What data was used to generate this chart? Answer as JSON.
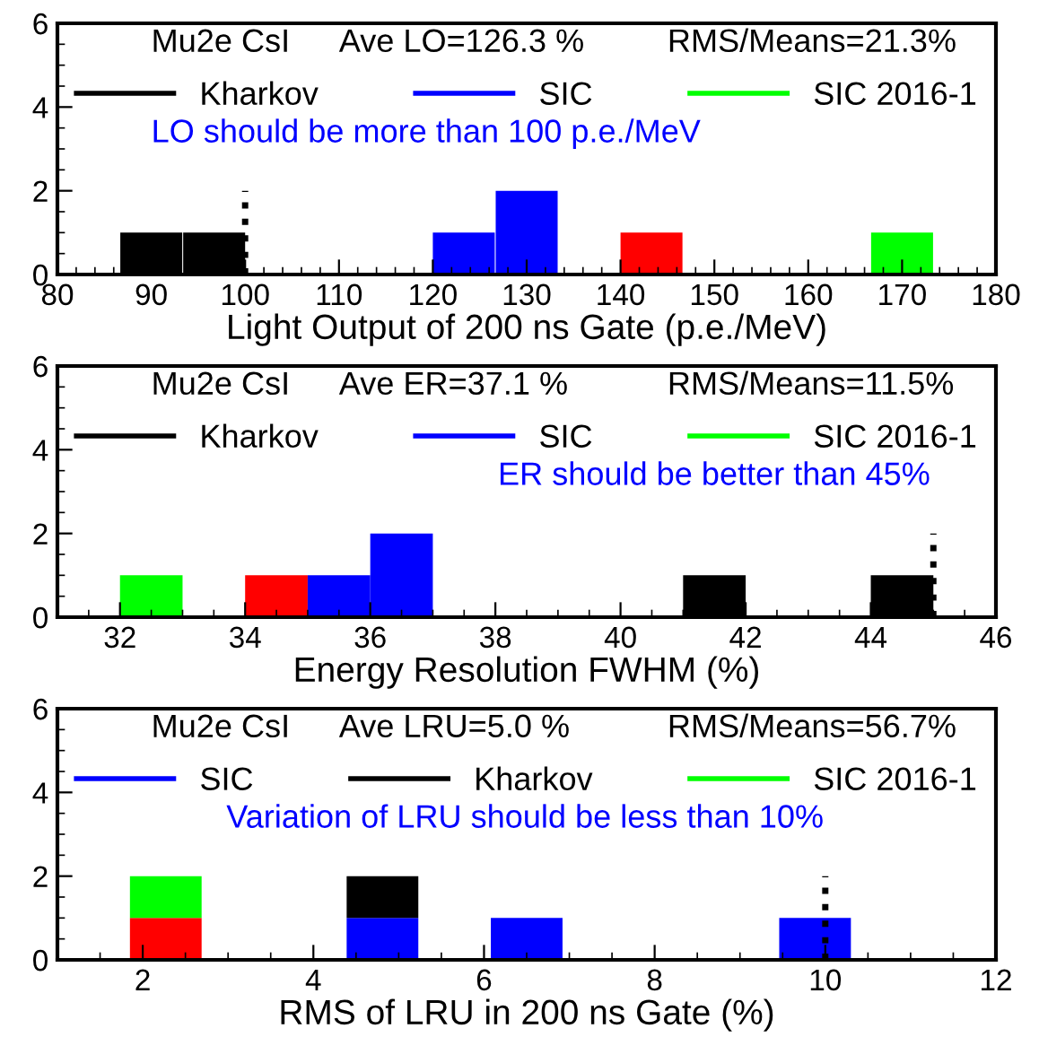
{
  "chart_data": [
    {
      "type": "bar",
      "xlabel": "Light Output of 200 ns Gate (p.e./MeV)",
      "annotations": [
        "Mu2e CsI",
        "Ave LO=126.3 %",
        "RMS/Means=21.3%",
        "LO should be more than 100 p.e./MeV"
      ],
      "stacked": true,
      "legend": "top",
      "grid": false,
      "x": [
        83.3,
        90,
        96.7,
        103.3,
        110,
        116.7,
        123.3,
        130,
        136.7,
        143.3,
        150,
        156.7,
        163.3,
        170,
        176.7
      ],
      "series": [
        {
          "name": "Kharkov",
          "color": "#000000",
          "values": [
            0,
            1,
            1,
            0,
            0,
            0,
            0,
            0,
            0,
            0,
            0,
            0,
            0,
            0,
            0
          ]
        },
        {
          "color": "#ff0000",
          "values": [
            0,
            0,
            0,
            0,
            0,
            0,
            0,
            0,
            0,
            1,
            0,
            0,
            0,
            0,
            0
          ]
        },
        {
          "name": "SIC",
          "color": "#0000ff",
          "values": [
            0,
            0,
            0,
            0,
            0,
            0,
            1,
            2,
            0,
            0,
            0,
            0,
            0,
            0,
            0
          ]
        },
        {
          "name": "SIC 2016-1",
          "color": "#00ff00",
          "values": [
            0,
            0,
            0,
            0,
            0,
            0,
            0,
            0,
            0,
            0,
            0,
            0,
            0,
            1,
            0
          ]
        },
        {
          "type": "line",
          "line_style": "dotted",
          "color": "#000000",
          "x": [
            100,
            100
          ],
          "values": [
            0,
            2
          ]
        }
      ],
      "xlim": [
        80,
        180
      ],
      "xticks": [
        80,
        90,
        100,
        110,
        120,
        130,
        140,
        150,
        160,
        170,
        180
      ],
      "ylim": [
        0,
        6
      ],
      "yticks": [
        0,
        2,
        4,
        6
      ]
    },
    {
      "type": "bar",
      "xlabel": "Energy Resolution FWHM (%)",
      "annotations": [
        "Mu2e CsI",
        "Ave ER=37.1 %",
        "RMS/Means=11.5%",
        "ER should be better than 45%"
      ],
      "stacked": true,
      "legend": "top",
      "grid": false,
      "x": [
        31.5,
        32.5,
        33.5,
        34.5,
        35.5,
        36.5,
        37.5,
        38.5,
        39.5,
        40.5,
        41.5,
        42.5,
        43.5,
        44.5,
        45.5
      ],
      "series": [
        {
          "name": "Kharkov",
          "color": "#000000",
          "values": [
            0,
            0,
            0,
            0,
            0,
            0,
            0,
            0,
            0,
            0,
            1,
            0,
            0,
            1,
            0
          ]
        },
        {
          "color": "#ff0000",
          "values": [
            0,
            0,
            0,
            1,
            0,
            0,
            0,
            0,
            0,
            0,
            0,
            0,
            0,
            0,
            0
          ]
        },
        {
          "name": "SIC",
          "color": "#0000ff",
          "values": [
            0,
            0,
            0,
            0,
            1,
            2,
            0,
            0,
            0,
            0,
            0,
            0,
            0,
            0,
            0
          ]
        },
        {
          "name": "SIC 2016-1",
          "color": "#00ff00",
          "values": [
            0,
            1,
            0,
            0,
            0,
            0,
            0,
            0,
            0,
            0,
            0,
            0,
            0,
            0,
            0
          ]
        },
        {
          "type": "line",
          "line_style": "dotted",
          "color": "#000000",
          "x": [
            45,
            45
          ],
          "values": [
            0,
            2
          ]
        }
      ],
      "xlim": [
        31,
        46
      ],
      "xticks": [
        32,
        34,
        36,
        38,
        40,
        42,
        44,
        46
      ],
      "ylim": [
        0,
        6
      ],
      "yticks": [
        0,
        2,
        4,
        6
      ]
    },
    {
      "type": "bar",
      "xlabel": "RMS of LRU in 200 ns Gate (%)",
      "annotations": [
        "Mu2e CsI",
        "Ave LRU=5.0 %",
        "RMS/Means=56.7%",
        "Variation of LRU should be less than 10%"
      ],
      "stacked": true,
      "legend": "top",
      "grid": false,
      "x": [
        1.42,
        2.27,
        3.12,
        3.96,
        4.81,
        5.65,
        6.5,
        7.35,
        8.19,
        9.04,
        9.88,
        10.73,
        11.58
      ],
      "series": [
        {
          "name": "SIC",
          "color": "#0000ff",
          "values": [
            0,
            0,
            0,
            0,
            1,
            0,
            1,
            0,
            0,
            0,
            1,
            0,
            0
          ]
        },
        {
          "name": "Kharkov",
          "color": "#000000",
          "values": [
            0,
            0,
            0,
            0,
            1,
            0,
            0,
            0,
            0,
            0,
            0,
            0,
            0
          ]
        },
        {
          "color": "#ff0000",
          "values": [
            0,
            1,
            0,
            0,
            0,
            0,
            0,
            0,
            0,
            0,
            0,
            0,
            0
          ]
        },
        {
          "name": "SIC 2016-1",
          "color": "#00ff00",
          "values": [
            0,
            1,
            0,
            0,
            0,
            0,
            0,
            0,
            0,
            0,
            0,
            0,
            0
          ]
        },
        {
          "type": "line",
          "line_style": "dotted",
          "color": "#000000",
          "x": [
            10,
            10
          ],
          "values": [
            0,
            2
          ]
        }
      ],
      "xlim": [
        1,
        12
      ],
      "xticks": [
        2,
        4,
        6,
        8,
        10,
        12
      ],
      "ylim": [
        0,
        6
      ],
      "yticks": [
        0,
        2,
        4,
        6
      ]
    }
  ]
}
